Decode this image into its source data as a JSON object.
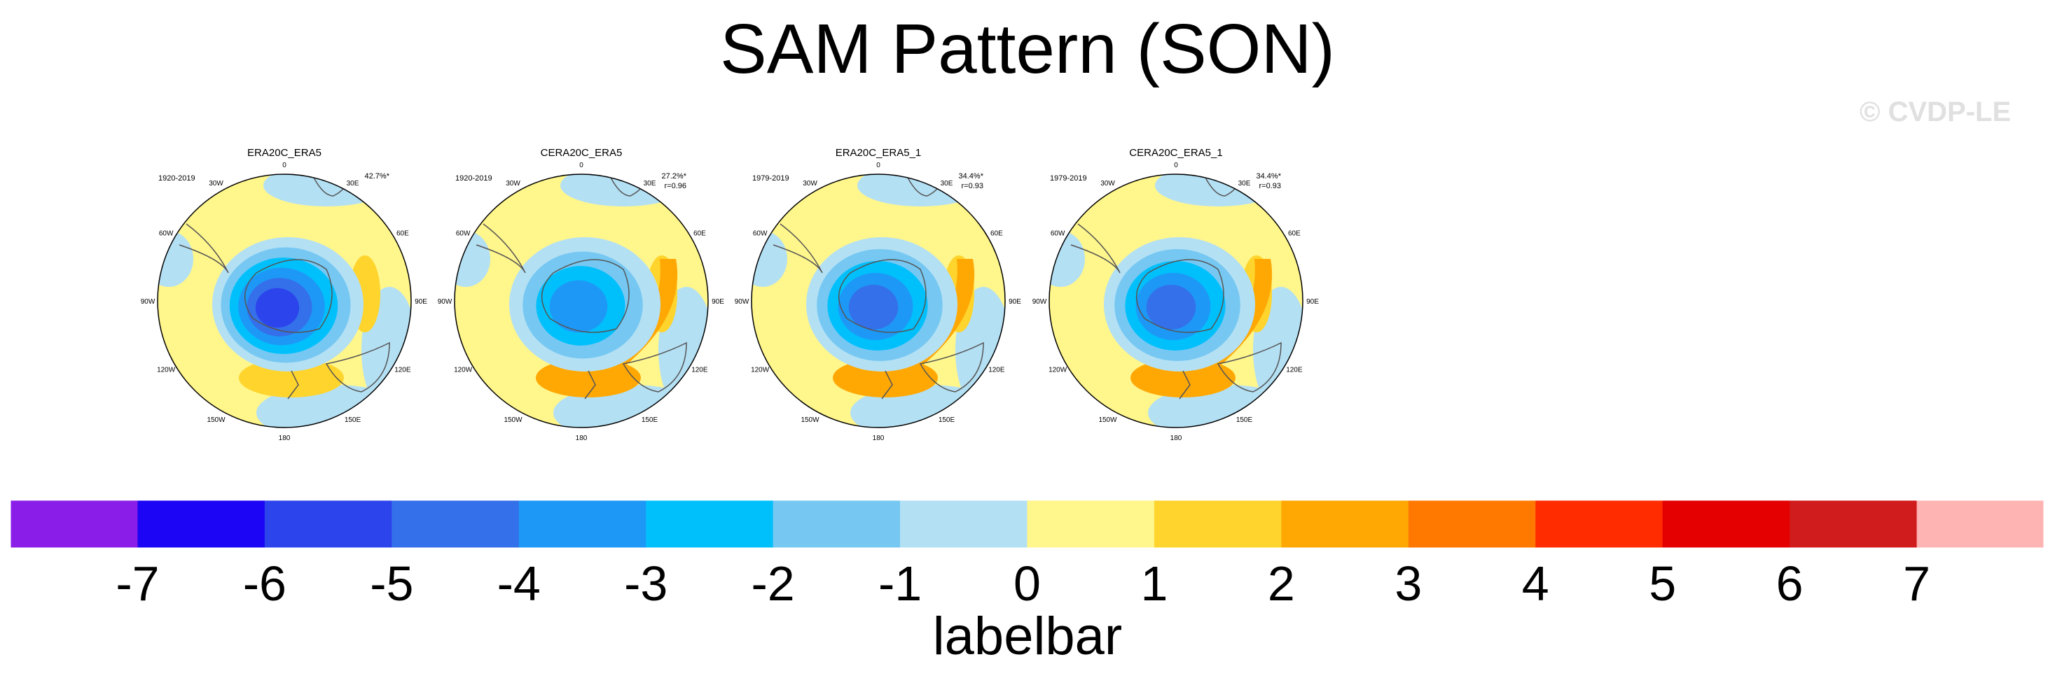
{
  "title": "SAM Pattern (SON)",
  "watermark": "© CVDP-LE",
  "colorbar": {
    "label": "labelbar",
    "ticks": [
      "-7",
      "-6",
      "-5",
      "-4",
      "-3",
      "-2",
      "-1",
      "0",
      "1",
      "2",
      "3",
      "4",
      "5",
      "6",
      "7"
    ],
    "colors": [
      "#8a1ee8",
      "#1c04f4",
      "#2c44ec",
      "#3470ea",
      "#1e98f6",
      "#00c0fc",
      "#76c8f2",
      "#b4e0f4",
      "#fff68c",
      "#ffd42c",
      "#ffa804",
      "#ff7800",
      "#ff2c00",
      "#e40000",
      "#d01c1c",
      "#ffb4b4"
    ]
  },
  "chart_data": {
    "type": "heatmap",
    "description_scale": "polar stereographic maps of SAM regression pattern, Southern Hemisphere",
    "panels": [
      {
        "title": "ERA20C_ERA5",
        "years": "1920-2019",
        "pct": "42.7%*",
        "r": "",
        "lon_labels": [
          "0",
          "30E",
          "60E",
          "90E",
          "120E",
          "150E",
          "180",
          "150W",
          "120W",
          "90W",
          "60W",
          "30W"
        ],
        "center_value": -5.5,
        "ring_value": 1.5,
        "pacific_value": 1.5,
        "pacific_max": 2
      },
      {
        "title": "CERA20C_ERA5",
        "years": "1920-2019",
        "pct": "27.2%*",
        "r": "r=0.96",
        "lon_labels": [
          "0",
          "30E",
          "60E",
          "90E",
          "120E",
          "150E",
          "180",
          "150W",
          "120W",
          "90W",
          "60W",
          "30W"
        ],
        "center_value": -3.5,
        "ring_value": 1.5,
        "pacific_value": 2,
        "pacific_max": 3
      },
      {
        "title": "ERA20C_ERA5_1",
        "years": "1979-2019",
        "pct": "34.4%*",
        "r": "r=0.93",
        "lon_labels": [
          "0",
          "30E",
          "60E",
          "90E",
          "120E",
          "150E",
          "180",
          "150W",
          "120W",
          "90W",
          "60W",
          "30W"
        ],
        "center_value": -4.5,
        "ring_value": 1.5,
        "pacific_value": 2,
        "pacific_max": 3
      },
      {
        "title": "CERA20C_ERA5_1",
        "years": "1979-2019",
        "pct": "34.4%*",
        "r": "r=0.93",
        "lon_labels": [
          "0",
          "30E",
          "60E",
          "90E",
          "120E",
          "150E",
          "180",
          "150W",
          "120W",
          "90W",
          "60W",
          "30W"
        ],
        "center_value": -4.5,
        "ring_value": 1.5,
        "pacific_value": 2,
        "pacific_max": 3
      }
    ]
  }
}
